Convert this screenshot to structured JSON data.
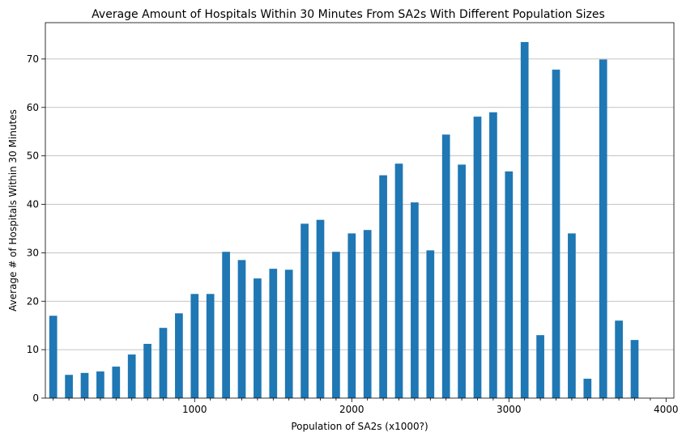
{
  "chart_data": {
    "type": "bar",
    "title": "Average Amount of Hospitals Within 30 Minutes From SA2s With Different Population Sizes",
    "xlabel": "Population of SA2s (x1000?)",
    "ylabel": "Average # of Hospitals Within 30 Minutes",
    "x_ticks": [
      1000,
      2000,
      3000,
      4000
    ],
    "y_ticks": [
      0,
      10,
      20,
      30,
      40,
      50,
      60,
      70
    ],
    "xlim": [
      0,
      4100
    ],
    "ylim": [
      0,
      77.5
    ],
    "grid": "horizontal",
    "color": "#1f77b4",
    "x": [
      100,
      200,
      300,
      400,
      500,
      600,
      700,
      800,
      900,
      1000,
      1100,
      1200,
      1300,
      1400,
      1500,
      1600,
      1700,
      1800,
      1900,
      2000,
      2100,
      2200,
      2300,
      2400,
      2500,
      2600,
      2700,
      2800,
      2900,
      3000,
      3100,
      3200,
      3300,
      3400,
      3500,
      3600,
      3700,
      3800,
      3900,
      4000
    ],
    "values": [
      17.0,
      4.8,
      5.2,
      5.5,
      6.5,
      9.0,
      11.2,
      14.5,
      17.5,
      21.5,
      21.5,
      30.2,
      28.5,
      24.7,
      26.7,
      26.5,
      36.0,
      36.8,
      30.2,
      34.0,
      34.7,
      46.0,
      48.4,
      40.4,
      30.5,
      54.4,
      48.2,
      58.1,
      59.0,
      46.8,
      73.5,
      13.0,
      67.8,
      34.0,
      4.0,
      69.9,
      16.0,
      12.0,
      0,
      0
    ]
  }
}
